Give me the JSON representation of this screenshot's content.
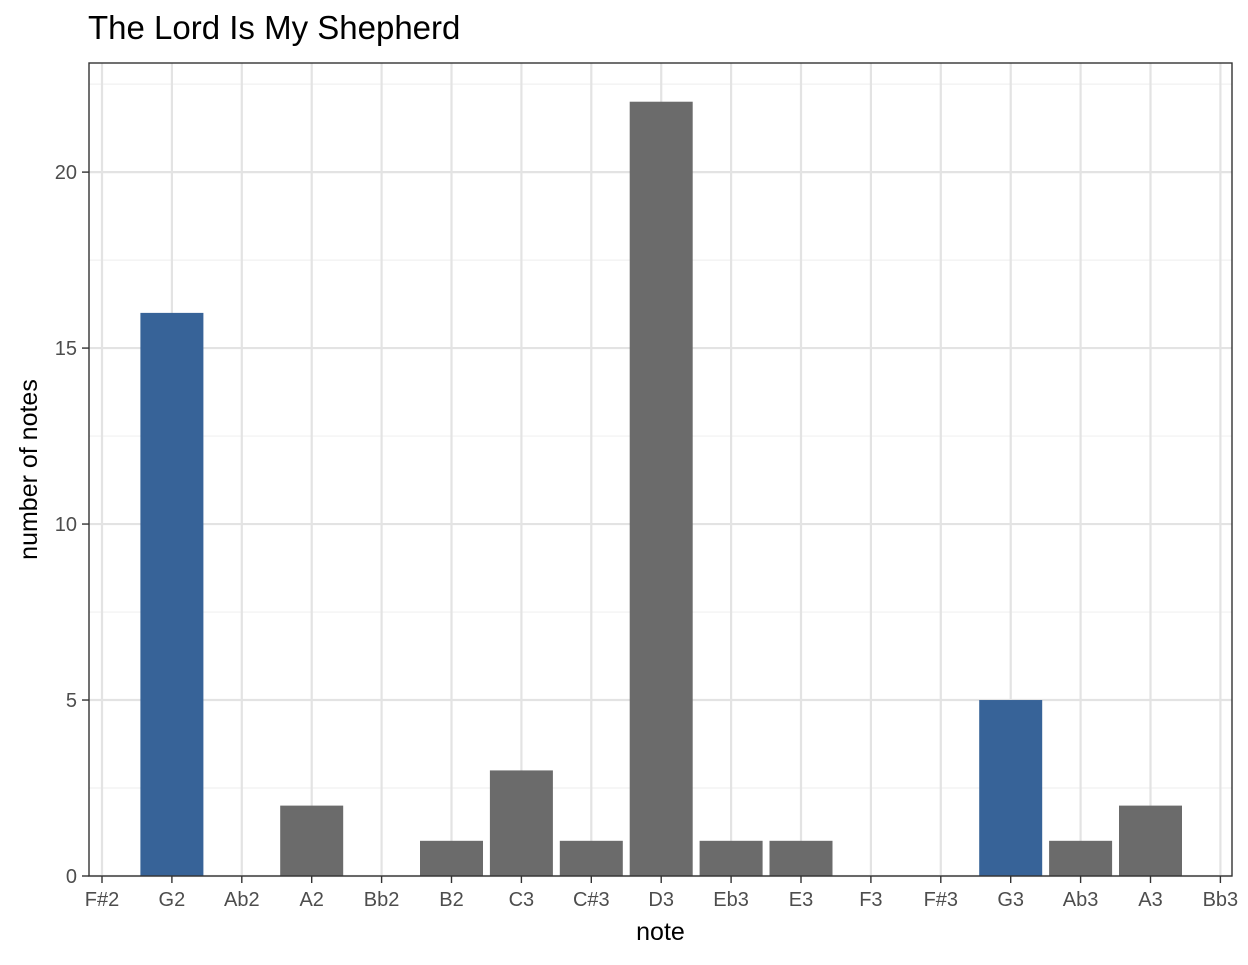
{
  "chart_data": {
    "type": "bar",
    "title": "The Lord Is My Shepherd",
    "xlabel": "note",
    "ylabel": "number of notes",
    "categories": [
      "F#2",
      "G2",
      "Ab2",
      "A2",
      "Bb2",
      "B2",
      "C3",
      "C#3",
      "D3",
      "Eb3",
      "E3",
      "F3",
      "F#3",
      "G3",
      "Ab3",
      "A3",
      "Bb3"
    ],
    "values": [
      0,
      16,
      0,
      2,
      0,
      1,
      3,
      1,
      22,
      1,
      1,
      0,
      0,
      5,
      1,
      2,
      0
    ],
    "highlight": [
      false,
      true,
      false,
      false,
      false,
      false,
      false,
      false,
      false,
      false,
      false,
      false,
      false,
      true,
      false,
      false,
      false
    ],
    "ylim": [
      0,
      23.1
    ],
    "yticks": [
      0,
      5,
      10,
      15,
      20
    ],
    "grid": true,
    "colors": {
      "highlight": "#376398",
      "default": "#6b6b6b",
      "grid_major": "#e3e3e3",
      "grid_minor": "#f1f1f1",
      "border": "#333333"
    }
  }
}
